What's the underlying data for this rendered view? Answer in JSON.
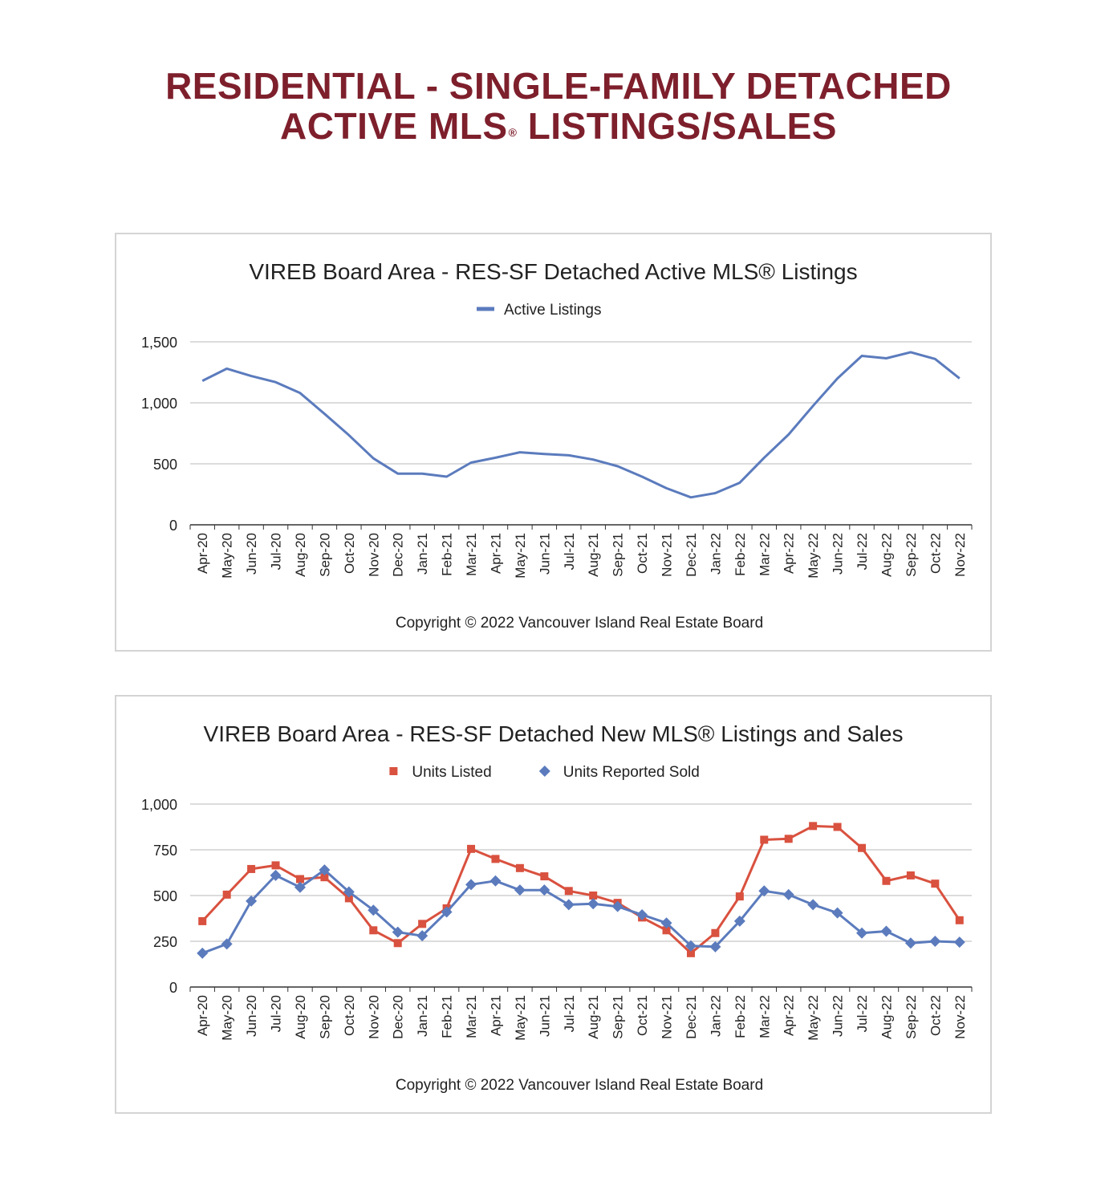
{
  "page": {
    "title_line1": "RESIDENTIAL - SINGLE-FAMILY DETACHED",
    "title_line2_a": "ACTIVE MLS",
    "title_line2_reg": "®",
    "title_line2_b": " LISTINGS/SALES",
    "title_color": "#7e1f2c"
  },
  "chart_data": [
    {
      "type": "line",
      "title": "VIREB Board Area - RES-SF Detached Active MLS® Listings",
      "footer": "Copyright © 2022 Vancouver Island Real Estate Board",
      "categories": [
        "Apr-20",
        "May-20",
        "Jun-20",
        "Jul-20",
        "Aug-20",
        "Sep-20",
        "Oct-20",
        "Nov-20",
        "Dec-20",
        "Jan-21",
        "Feb-21",
        "Mar-21",
        "Apr-21",
        "May-21",
        "Jun-21",
        "Jul-21",
        "Aug-21",
        "Sep-21",
        "Oct-21",
        "Nov-21",
        "Dec-21",
        "Jan-22",
        "Feb-22",
        "Mar-22",
        "Apr-22",
        "May-22",
        "Jun-22",
        "Jul-22",
        "Aug-22",
        "Sep-22",
        "Oct-22",
        "Nov-22"
      ],
      "yticks": [
        "0",
        "500",
        "1,000",
        "1,500"
      ],
      "ylim": [
        0,
        1500
      ],
      "grid": true,
      "legend": "top-center",
      "series": [
        {
          "name": "Active Listings",
          "color": "#5b7bbd",
          "marker": "none",
          "values": [
            1180,
            1280,
            1220,
            1170,
            1080,
            910,
            735,
            545,
            420,
            420,
            395,
            510,
            550,
            595,
            580,
            570,
            535,
            480,
            395,
            300,
            225,
            260,
            345,
            550,
            740,
            975,
            1200,
            1385,
            1365,
            1415,
            1360,
            1200
          ]
        }
      ]
    },
    {
      "type": "line",
      "title": "VIREB Board Area - RES-SF Detached New MLS® Listings and Sales",
      "footer": "Copyright © 2022 Vancouver Island Real Estate Board",
      "categories": [
        "Apr-20",
        "May-20",
        "Jun-20",
        "Jul-20",
        "Aug-20",
        "Sep-20",
        "Oct-20",
        "Nov-20",
        "Dec-20",
        "Jan-21",
        "Feb-21",
        "Mar-21",
        "Apr-21",
        "May-21",
        "Jun-21",
        "Jul-21",
        "Aug-21",
        "Sep-21",
        "Oct-21",
        "Nov-21",
        "Dec-21",
        "Jan-22",
        "Feb-22",
        "Mar-22",
        "Apr-22",
        "May-22",
        "Jun-22",
        "Jul-22",
        "Aug-22",
        "Sep-22",
        "Oct-22",
        "Nov-22"
      ],
      "yticks": [
        "0",
        "250",
        "500",
        "750",
        "1,000"
      ],
      "ylim": [
        0,
        1000
      ],
      "grid": true,
      "legend": "top-center",
      "series": [
        {
          "name": "Units Listed",
          "color": "#d9513f",
          "marker": "square",
          "values": [
            360,
            505,
            645,
            665,
            590,
            600,
            485,
            310,
            240,
            345,
            430,
            755,
            700,
            650,
            605,
            525,
            500,
            460,
            380,
            310,
            185,
            295,
            495,
            805,
            810,
            880,
            875,
            760,
            580,
            610,
            565,
            365
          ]
        },
        {
          "name": "Units Reported Sold",
          "color": "#5b7bbd",
          "marker": "diamond",
          "values": [
            185,
            235,
            470,
            610,
            545,
            640,
            520,
            420,
            300,
            280,
            410,
            560,
            580,
            530,
            530,
            450,
            455,
            440,
            395,
            350,
            225,
            220,
            360,
            525,
            505,
            450,
            405,
            295,
            305,
            240,
            250,
            245
          ]
        }
      ]
    }
  ]
}
